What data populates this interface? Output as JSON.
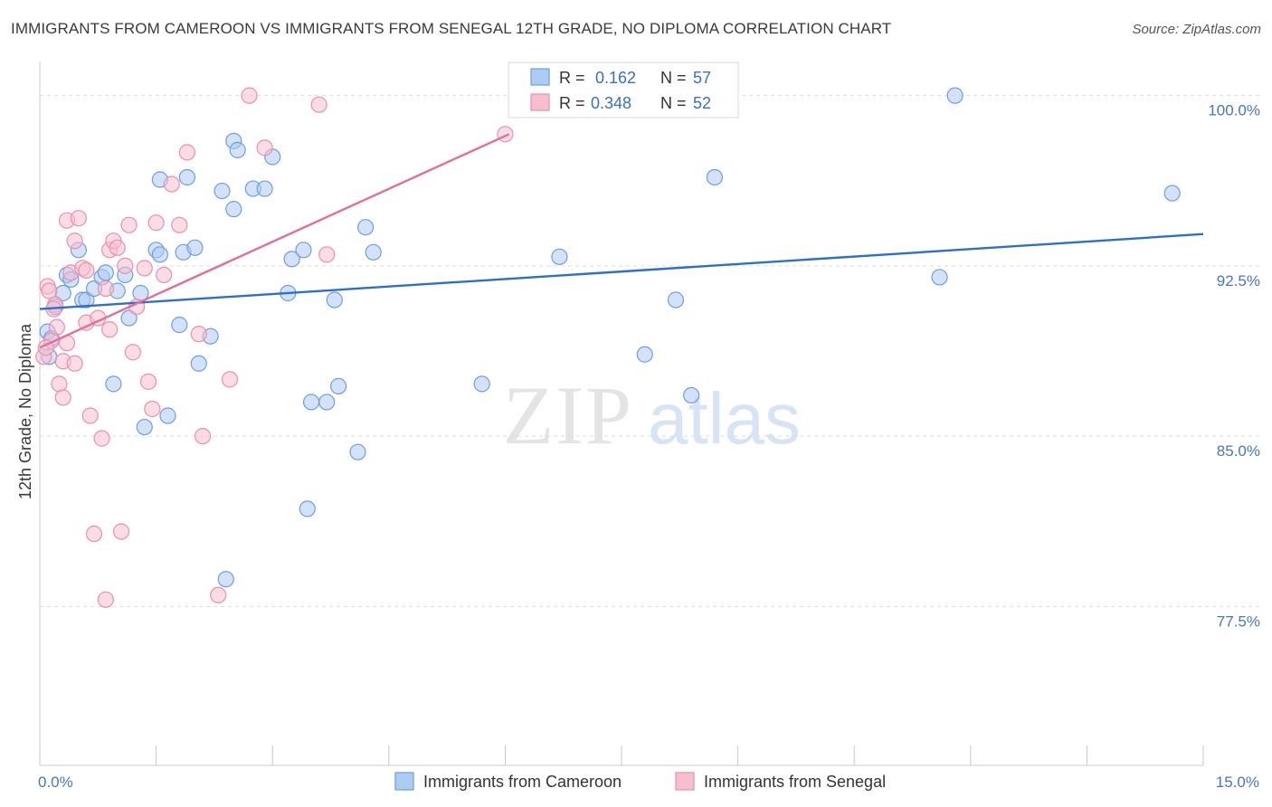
{
  "title": "IMMIGRANTS FROM CAMEROON VS IMMIGRANTS FROM SENEGAL 12TH GRADE, NO DIPLOMA CORRELATION CHART",
  "source": "Source: ZipAtlas.com",
  "watermark": {
    "zip": "ZIP",
    "atlas": "atlas"
  },
  "colors": {
    "blue_fill": "#aecbf2",
    "blue_stroke": "#6d9ee0",
    "blue_line": "#2c6fcc",
    "pink_fill": "#f6bfd0",
    "pink_stroke": "#ea8fad",
    "pink_line": "#e0709a",
    "tick_text": "#4a74c4",
    "grid": "#dddddd"
  },
  "legend": {
    "rows": [
      {
        "r_label": "R =",
        "r_value": "0.162",
        "n_label": "N =",
        "n_value": "57"
      },
      {
        "r_label": "R =",
        "r_value": "0.348",
        "n_label": "N =",
        "n_value": "52"
      }
    ]
  },
  "chart_data": {
    "type": "scatter",
    "title": "IMMIGRANTS FROM CAMEROON VS IMMIGRANTS FROM SENEGAL 12TH GRADE, NO DIPLOMA CORRELATION CHART",
    "xlabel": "",
    "ylabel": "12th Grade, No Diploma",
    "xlim": [
      0,
      15
    ],
    "ylim": [
      70.5,
      101.5
    ],
    "x_tick_labels": [
      {
        "v": 0,
        "label": "0.0%"
      },
      {
        "v": 15,
        "label": "15.0%"
      }
    ],
    "x_minor_ticks": [
      1.5,
      3.0,
      4.5,
      6.0,
      7.5,
      9.0,
      10.5,
      12.0,
      13.5
    ],
    "y_ticks": [
      {
        "v": 100,
        "label": "100.0%"
      },
      {
        "v": 92.5,
        "label": "92.5%"
      },
      {
        "v": 85,
        "label": "85.0%"
      },
      {
        "v": 77.5,
        "label": "77.5%"
      }
    ],
    "series": [
      {
        "name": "Immigrants from Cameroon",
        "color": "blue",
        "trend": {
          "x": [
            0,
            15
          ],
          "y": [
            90.6,
            93.9
          ]
        },
        "points": [
          [
            0.1,
            89.6
          ],
          [
            0.15,
            89.3
          ],
          [
            0.2,
            90.7
          ],
          [
            0.3,
            91.3
          ],
          [
            0.35,
            92.1
          ],
          [
            0.4,
            91.9
          ],
          [
            0.5,
            93.2
          ],
          [
            0.55,
            91.0
          ],
          [
            0.6,
            91.0
          ],
          [
            0.7,
            91.5
          ],
          [
            0.8,
            92.0
          ],
          [
            0.85,
            92.2
          ],
          [
            0.95,
            87.3
          ],
          [
            1.0,
            91.4
          ],
          [
            1.1,
            92.1
          ],
          [
            1.15,
            90.2
          ],
          [
            1.3,
            91.3
          ],
          [
            1.35,
            85.4
          ],
          [
            1.5,
            93.2
          ],
          [
            1.55,
            93.0
          ],
          [
            1.55,
            96.3
          ],
          [
            1.65,
            85.9
          ],
          [
            1.8,
            89.9
          ],
          [
            1.85,
            93.1
          ],
          [
            1.9,
            96.4
          ],
          [
            2.0,
            93.3
          ],
          [
            2.05,
            88.2
          ],
          [
            2.2,
            89.4
          ],
          [
            2.35,
            95.8
          ],
          [
            2.4,
            78.7
          ],
          [
            2.5,
            98.0
          ],
          [
            2.5,
            95.0
          ],
          [
            2.55,
            97.6
          ],
          [
            2.75,
            95.9
          ],
          [
            2.9,
            95.9
          ],
          [
            3.0,
            97.3
          ],
          [
            3.2,
            91.3
          ],
          [
            3.25,
            92.8
          ],
          [
            3.4,
            93.2
          ],
          [
            3.45,
            81.8
          ],
          [
            3.5,
            86.5
          ],
          [
            3.7,
            86.5
          ],
          [
            3.8,
            91.0
          ],
          [
            3.85,
            87.2
          ],
          [
            4.1,
            84.3
          ],
          [
            4.2,
            94.2
          ],
          [
            4.3,
            93.1
          ],
          [
            5.7,
            87.3
          ],
          [
            6.7,
            92.9
          ],
          [
            7.8,
            88.6
          ],
          [
            8.2,
            91.0
          ],
          [
            8.4,
            86.8
          ],
          [
            8.7,
            96.4
          ],
          [
            11.6,
            92.0
          ],
          [
            11.8,
            100.0
          ],
          [
            14.6,
            95.7
          ],
          [
            0.12,
            88.5
          ]
        ]
      },
      {
        "name": "Immigrants from Senegal",
        "color": "pink",
        "trend": {
          "x": [
            0,
            6.05
          ],
          "y": [
            88.9,
            98.3
          ]
        },
        "points": [
          [
            0.05,
            88.5
          ],
          [
            0.1,
            91.6
          ],
          [
            0.12,
            91.4
          ],
          [
            0.15,
            89.2
          ],
          [
            0.2,
            90.8
          ],
          [
            0.22,
            89.8
          ],
          [
            0.25,
            87.3
          ],
          [
            0.3,
            86.7
          ],
          [
            0.3,
            88.3
          ],
          [
            0.35,
            89.1
          ],
          [
            0.35,
            94.5
          ],
          [
            0.4,
            92.2
          ],
          [
            0.45,
            93.6
          ],
          [
            0.45,
            88.2
          ],
          [
            0.5,
            94.6
          ],
          [
            0.55,
            92.4
          ],
          [
            0.6,
            92.3
          ],
          [
            0.6,
            90.0
          ],
          [
            0.65,
            85.9
          ],
          [
            0.7,
            80.7
          ],
          [
            0.75,
            90.2
          ],
          [
            0.8,
            84.9
          ],
          [
            0.85,
            91.5
          ],
          [
            0.85,
            77.8
          ],
          [
            0.9,
            93.2
          ],
          [
            0.9,
            89.7
          ],
          [
            0.95,
            93.6
          ],
          [
            1.0,
            93.3
          ],
          [
            1.05,
            80.8
          ],
          [
            1.1,
            92.5
          ],
          [
            1.15,
            94.3
          ],
          [
            1.2,
            88.7
          ],
          [
            1.25,
            90.7
          ],
          [
            1.35,
            92.4
          ],
          [
            1.4,
            87.4
          ],
          [
            1.45,
            86.2
          ],
          [
            1.5,
            94.4
          ],
          [
            1.6,
            92.1
          ],
          [
            1.7,
            96.1
          ],
          [
            1.8,
            94.3
          ],
          [
            1.9,
            97.5
          ],
          [
            2.05,
            89.5
          ],
          [
            2.1,
            85.0
          ],
          [
            2.3,
            78.0
          ],
          [
            2.45,
            87.5
          ],
          [
            2.7,
            100.0
          ],
          [
            2.9,
            97.7
          ],
          [
            3.6,
            99.6
          ],
          [
            3.7,
            93.0
          ],
          [
            6.0,
            98.3
          ],
          [
            0.08,
            88.9
          ],
          [
            0.18,
            90.6
          ]
        ]
      }
    ]
  },
  "bottom_legend": [
    "Immigrants from Cameroon",
    "Immigrants from Senegal"
  ]
}
